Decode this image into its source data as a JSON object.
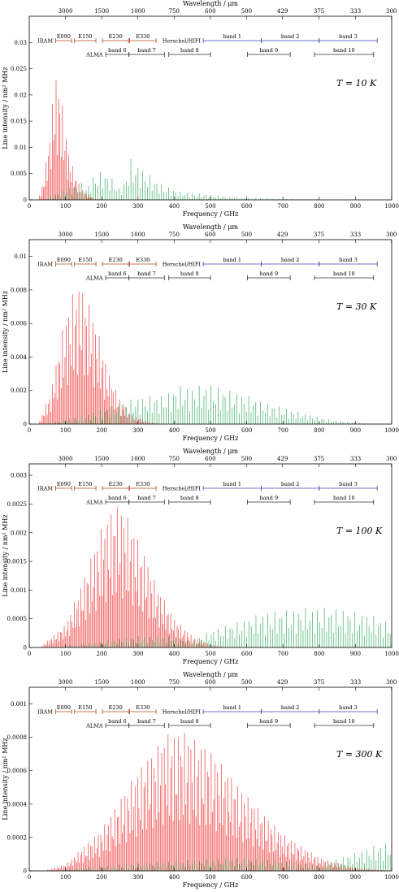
{
  "figure": {
    "axis_labels": {
      "x_bottom": "Frequency / GHz",
      "x_top": "Wavelength / μm",
      "y": "Line intensity / nm² MHz"
    },
    "top_ticks": [
      "3000",
      "1500",
      "1000",
      "750",
      "600",
      "500",
      "429",
      "375",
      "333",
      "300"
    ],
    "bands": {
      "iram_label": "IRAM",
      "alma_label": "ALMA",
      "hifi_label": "Herschel/HIFI",
      "iram": [
        {
          "name": "E090",
          "start": 73,
          "end": 117
        },
        {
          "name": "E150",
          "start": 125,
          "end": 184
        },
        {
          "name": "E230",
          "start": 202,
          "end": 274
        },
        {
          "name": "E330",
          "start": 277,
          "end": 350
        }
      ],
      "alma": [
        {
          "name": "band 6",
          "start": 211,
          "end": 275
        },
        {
          "name": "band 7",
          "start": 275,
          "end": 373
        },
        {
          "name": "band 8",
          "start": 385,
          "end": 500
        },
        {
          "name": "band 9",
          "start": 602,
          "end": 720
        },
        {
          "name": "band 10",
          "start": 787,
          "end": 950
        }
      ],
      "hifi": [
        {
          "name": "band 1",
          "start": 480,
          "end": 640
        },
        {
          "name": "band 2",
          "start": 640,
          "end": 800
        },
        {
          "name": "band 3",
          "start": 800,
          "end": 960
        }
      ]
    },
    "colors": {
      "red": "#ee2020",
      "green": "#18a048",
      "iram": "#b04a20",
      "alma": "#333333",
      "hifi": "#3b48a8"
    }
  },
  "chart_data": [
    {
      "type": "bar",
      "title": "T = 10 K",
      "temperature_label": "T = 10 K",
      "xlabel": "Frequency / GHz",
      "ylabel": "Line intensity / nm² MHz",
      "xlim": [
        0,
        1000
      ],
      "ylim": [
        0,
        0.035
      ],
      "x_ticks": [
        "0",
        "100",
        "200",
        "300",
        "400",
        "500",
        "600",
        "700",
        "800",
        "900",
        "1000"
      ],
      "y_ticks": [
        {
          "v": 0,
          "t": "0"
        },
        {
          "v": 0.005,
          "t": "0.005"
        },
        {
          "v": 0.01,
          "t": "0.01"
        },
        {
          "v": 0.015,
          "t": "0.015"
        },
        {
          "v": 0.02,
          "t": "0.02"
        },
        {
          "v": 0.025,
          "t": "0.025"
        },
        {
          "v": 0.03,
          "t": "0.03"
        }
      ],
      "series": [
        {
          "color": "red",
          "spacing": 3.5,
          "peaks": [
            [
              25,
              0.0
            ],
            [
              40,
              0.004
            ],
            [
              55,
              0.012
            ],
            [
              65,
              0.02
            ],
            [
              75,
              0.024
            ],
            [
              85,
              0.022
            ],
            [
              95,
              0.016
            ],
            [
              110,
              0.009
            ],
            [
              125,
              0.005
            ],
            [
              145,
              0.002
            ],
            [
              165,
              0.001
            ],
            [
              180,
              0.0003
            ],
            [
              200,
              0.0
            ]
          ]
        },
        {
          "color": "green",
          "spacing": 6.5,
          "peaks": [
            [
              40,
              0.0
            ],
            [
              60,
              0.0008
            ],
            [
              100,
              0.002
            ],
            [
              140,
              0.0035
            ],
            [
              160,
              0.0025
            ],
            [
              180,
              0.005
            ],
            [
              205,
              0.0055
            ],
            [
              225,
              0.0045
            ],
            [
              250,
              0.002
            ],
            [
              265,
              0.004
            ],
            [
              280,
              0.0078
            ],
            [
              310,
              0.0062
            ],
            [
              340,
              0.0042
            ],
            [
              380,
              0.0025
            ],
            [
              420,
              0.0015
            ],
            [
              470,
              0.0012
            ],
            [
              500,
              0.001
            ],
            [
              550,
              0.0006
            ],
            [
              600,
              0.0004
            ],
            [
              700,
              0.0002
            ],
            [
              800,
              0.0001
            ],
            [
              900,
              0.0
            ]
          ]
        }
      ]
    },
    {
      "type": "bar",
      "title": "T = 30 K",
      "temperature_label": "T = 30 K",
      "xlabel": "Frequency / GHz",
      "ylabel": "Line intensity / nm² MHz",
      "xlim": [
        0,
        1000
      ],
      "ylim": [
        0,
        0.011
      ],
      "x_ticks": [
        "0",
        "100",
        "200",
        "300",
        "400",
        "500",
        "600",
        "700",
        "800",
        "900",
        "1000"
      ],
      "y_ticks": [
        {
          "v": 0,
          "t": "0"
        },
        {
          "v": 0.002,
          "t": "0.002"
        },
        {
          "v": 0.004,
          "t": "0.004"
        },
        {
          "v": 0.006,
          "t": "0.006"
        },
        {
          "v": 0.008,
          "t": "0.008"
        },
        {
          "v": 0.01,
          "t": "0.01"
        }
      ],
      "series": [
        {
          "color": "red",
          "spacing": 3.5,
          "peaks": [
            [
              25,
              0.0
            ],
            [
              60,
              0.002
            ],
            [
              90,
              0.0055
            ],
            [
              120,
              0.0078
            ],
            [
              140,
              0.0083
            ],
            [
              160,
              0.0075
            ],
            [
              190,
              0.0055
            ],
            [
              220,
              0.003
            ],
            [
              250,
              0.0015
            ],
            [
              280,
              0.0006
            ],
            [
              320,
              0.0002
            ],
            [
              360,
              0.0
            ]
          ]
        },
        {
          "color": "green",
          "spacing": 6.5,
          "peaks": [
            [
              40,
              0.0
            ],
            [
              150,
              0.0005
            ],
            [
              240,
              0.0012
            ],
            [
              300,
              0.0016
            ],
            [
              340,
              0.0017
            ],
            [
              380,
              0.0018
            ],
            [
              410,
              0.0023
            ],
            [
              450,
              0.0022
            ],
            [
              500,
              0.0024
            ],
            [
              540,
              0.0021
            ],
            [
              600,
              0.0017
            ],
            [
              650,
              0.0013
            ],
            [
              700,
              0.001
            ],
            [
              750,
              0.0007
            ],
            [
              800,
              0.0004
            ],
            [
              850,
              0.0002
            ],
            [
              900,
              0.0001
            ],
            [
              950,
              0.0
            ]
          ]
        }
      ]
    },
    {
      "type": "bar",
      "title": "T = 100 K",
      "temperature_label": "T = 100 K",
      "xlabel": "Frequency / GHz",
      "ylabel": "Line intensity / nm² MHz",
      "xlim": [
        0,
        1000
      ],
      "ylim": [
        0,
        0.0032
      ],
      "x_ticks": [
        "0",
        "100",
        "200",
        "300",
        "400",
        "500",
        "600",
        "700",
        "800",
        "900",
        "1000"
      ],
      "y_ticks": [
        {
          "v": 0,
          "t": "0"
        },
        {
          "v": 0.0005,
          "t": "0.0005"
        },
        {
          "v": 0.001,
          "t": "0.001"
        },
        {
          "v": 0.0015,
          "t": "0.0015"
        },
        {
          "v": 0.002,
          "t": "0.002"
        },
        {
          "v": 0.0025,
          "t": "0.0025"
        },
        {
          "v": 0.003,
          "t": "0.003"
        }
      ],
      "series": [
        {
          "color": "red",
          "spacing": 3.5,
          "peaks": [
            [
              30,
              0.0
            ],
            [
              100,
              0.0004
            ],
            [
              150,
              0.0012
            ],
            [
              200,
              0.0021
            ],
            [
              240,
              0.0025
            ],
            [
              260,
              0.0024
            ],
            [
              300,
              0.0019
            ],
            [
              350,
              0.0011
            ],
            [
              400,
              0.0005
            ],
            [
              450,
              0.0002
            ],
            [
              500,
              5e-05
            ],
            [
              550,
              0.0
            ]
          ]
        },
        {
          "color": "green",
          "spacing": 6.5,
          "peaks": [
            [
              60,
              0.0
            ],
            [
              200,
              0.0001
            ],
            [
              300,
              0.0002
            ],
            [
              400,
              0.0002
            ],
            [
              450,
              0.0001
            ],
            [
              500,
              0.0003
            ],
            [
              550,
              0.0004
            ],
            [
              600,
              0.0005
            ],
            [
              650,
              0.00062
            ],
            [
              700,
              0.00065
            ],
            [
              750,
              0.00068
            ],
            [
              800,
              0.0007
            ],
            [
              850,
              0.00068
            ],
            [
              900,
              0.00062
            ],
            [
              950,
              0.00055
            ],
            [
              1000,
              0.00042
            ]
          ]
        }
      ]
    },
    {
      "type": "bar",
      "title": "T = 300 K",
      "temperature_label": "T = 300 K",
      "xlabel": "Frequency / GHz",
      "ylabel": "Line intensity / nm² MHz",
      "xlim": [
        0,
        1000
      ],
      "ylim": [
        0,
        0.0011
      ],
      "x_ticks": [
        "0",
        "100",
        "200",
        "300",
        "400",
        "500",
        "600",
        "700",
        "800",
        "900",
        "1000"
      ],
      "y_ticks": [
        {
          "v": 0,
          "t": "0"
        },
        {
          "v": 0.0002,
          "t": "0.0002"
        },
        {
          "v": 0.0004,
          "t": "0.0004"
        },
        {
          "v": 0.0006,
          "t": "0.0006"
        },
        {
          "v": 0.0008,
          "t": "0.0008"
        },
        {
          "v": 0.001,
          "t": "0.001"
        }
      ],
      "series": [
        {
          "color": "red",
          "spacing": 3.5,
          "peaks": [
            [
              40,
              0.0
            ],
            [
              100,
              4e-05
            ],
            [
              200,
              0.00025
            ],
            [
              300,
              0.0006
            ],
            [
              380,
              0.00082
            ],
            [
              430,
              0.00083
            ],
            [
              500,
              0.00072
            ],
            [
              600,
              0.00045
            ],
            [
              700,
              0.00022
            ],
            [
              800,
              8e-05
            ],
            [
              900,
              2e-05
            ],
            [
              1000,
              0.0
            ]
          ]
        },
        {
          "color": "green",
          "spacing": 6.5,
          "peaks": [
            [
              60,
              0.0
            ],
            [
              200,
              3e-05
            ],
            [
              400,
              6e-05
            ],
            [
              600,
              8e-05
            ],
            [
              700,
              6e-05
            ],
            [
              800,
              3e-05
            ],
            [
              860,
              8e-05
            ],
            [
              900,
              0.00011
            ],
            [
              950,
              0.00015
            ],
            [
              1000,
              0.00018
            ]
          ]
        }
      ]
    }
  ]
}
